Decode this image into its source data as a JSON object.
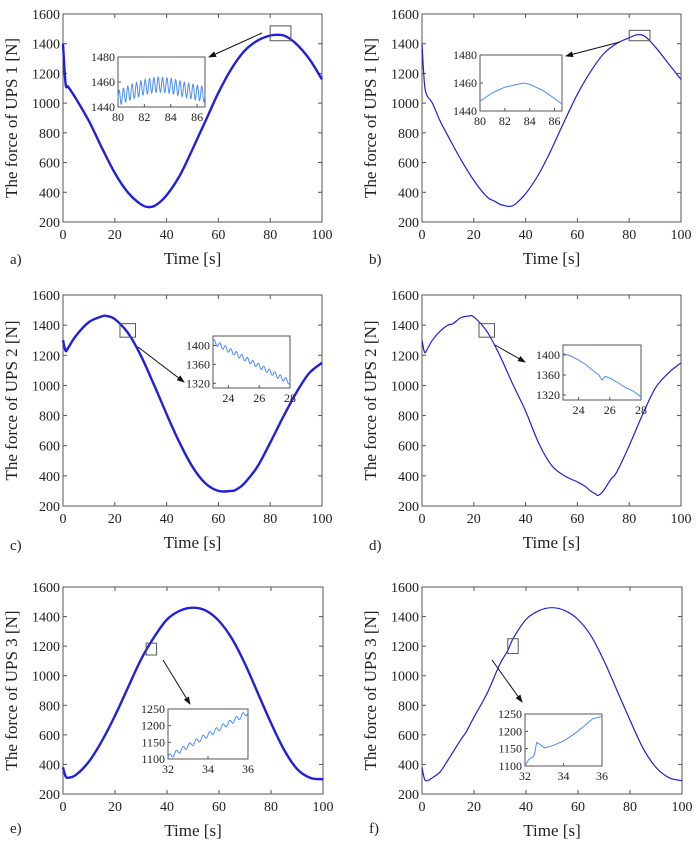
{
  "chart_data": [
    {
      "panel": "a)",
      "type": "line",
      "xlabel": "Time [s]",
      "ylabel": "The force of UPS 1 [N]",
      "xlim": [
        0,
        100
      ],
      "ylim": [
        200,
        1600
      ],
      "xticks": [
        0,
        20,
        40,
        60,
        80,
        100
      ],
      "yticks": [
        200,
        400,
        600,
        800,
        1000,
        1200,
        1400,
        1600
      ],
      "series": [
        {
          "name": "UPS 1 force",
          "color": "#1f1fe0",
          "x": [
            0,
            1,
            2,
            5,
            10,
            15,
            20,
            25,
            30,
            33,
            36,
            40,
            45,
            50,
            55,
            60,
            65,
            70,
            75,
            80,
            83,
            86,
            90,
            95,
            100
          ],
          "y": [
            1400,
            1130,
            1110,
            1030,
            880,
            700,
            530,
            400,
            320,
            300,
            315,
            380,
            510,
            690,
            880,
            1070,
            1230,
            1350,
            1420,
            1455,
            1460,
            1450,
            1400,
            1300,
            1160
          ]
        }
      ],
      "inset": {
        "xlim": [
          80,
          86.6
        ],
        "ylim": [
          1440,
          1480
        ],
        "xticks": [
          80,
          82,
          84,
          86
        ],
        "yticks": [
          1440,
          1460,
          1480
        ],
        "type": "oscillating",
        "baseline_x": [
          80,
          81,
          82,
          83,
          84,
          85,
          86.6
        ],
        "baseline_y": [
          1447,
          1452,
          1456,
          1458,
          1457,
          1454,
          1450
        ],
        "amplitude": 6,
        "cycles": 20,
        "color": "#4a8cff"
      },
      "zoom_box": {
        "x": [
          80,
          88
        ],
        "y": [
          1420,
          1520
        ]
      }
    },
    {
      "panel": "b)",
      "type": "line",
      "xlabel": "Time [s]",
      "ylabel": "The force of UPS 1 [N]",
      "xlim": [
        0,
        100
      ],
      "ylim": [
        200,
        1600
      ],
      "xticks": [
        0,
        20,
        40,
        60,
        80,
        100
      ],
      "yticks": [
        200,
        400,
        600,
        800,
        1000,
        1200,
        1400,
        1600
      ],
      "series": [
        {
          "name": "UPS 1 force",
          "color": "#1f1fe0",
          "x": [
            0,
            1,
            2,
            4,
            7,
            10,
            15,
            20,
            25,
            28,
            30,
            32,
            34,
            36,
            40,
            45,
            50,
            55,
            60,
            65,
            70,
            75,
            80,
            83,
            86,
            90,
            95,
            100
          ],
          "y": [
            1400,
            1120,
            1050,
            1000,
            880,
            780,
            620,
            480,
            370,
            340,
            320,
            310,
            305,
            320,
            390,
            520,
            690,
            880,
            1060,
            1210,
            1330,
            1400,
            1440,
            1460,
            1450,
            1380,
            1270,
            1160
          ]
        }
      ],
      "inset": {
        "xlim": [
          80,
          86.6
        ],
        "ylim": [
          1440,
          1480
        ],
        "xticks": [
          80,
          82,
          84,
          86
        ],
        "yticks": [
          1440,
          1460,
          1480
        ],
        "type": "smooth",
        "x": [
          80,
          80.5,
          81,
          81.5,
          82,
          82.5,
          83,
          83.5,
          84,
          84.5,
          85,
          85.5,
          86,
          86.6
        ],
        "y": [
          1447,
          1450,
          1453,
          1455,
          1457,
          1458,
          1459,
          1460,
          1459,
          1457,
          1455,
          1452,
          1449,
          1445
        ],
        "color": "#4a8cff"
      },
      "zoom_box": {
        "x": [
          80,
          88
        ],
        "y": [
          1420,
          1490
        ]
      }
    },
    {
      "panel": "c)",
      "type": "line",
      "xlabel": "Time [s]",
      "ylabel": "The force of UPS 2 [N]",
      "xlim": [
        0,
        100
      ],
      "ylim": [
        200,
        1600
      ],
      "xticks": [
        0,
        20,
        40,
        60,
        80,
        100
      ],
      "yticks": [
        200,
        400,
        600,
        800,
        1000,
        1200,
        1400,
        1600
      ],
      "series": [
        {
          "name": "UPS 2 force",
          "color": "#1f1fe0",
          "x": [
            0,
            1,
            2,
            5,
            10,
            15,
            17,
            20,
            25,
            30,
            35,
            40,
            45,
            50,
            55,
            60,
            65,
            67,
            70,
            75,
            80,
            85,
            90,
            95,
            100
          ],
          "y": [
            1300,
            1230,
            1250,
            1330,
            1420,
            1458,
            1460,
            1440,
            1350,
            1200,
            1010,
            810,
            620,
            460,
            350,
            300,
            300,
            310,
            350,
            460,
            620,
            790,
            950,
            1080,
            1150
          ]
        }
      ],
      "inset": {
        "xlim": [
          23,
          28
        ],
        "ylim": [
          1310,
          1420
        ],
        "xticks": [
          24,
          26,
          28
        ],
        "yticks": [
          1320,
          1360,
          1400
        ],
        "type": "oscillating",
        "baseline_x": [
          23,
          28
        ],
        "baseline_y": [
          1408,
          1322
        ],
        "amplitude": 5,
        "cycles": 14,
        "color": "#4a8cff"
      },
      "zoom_box": {
        "x": [
          22,
          28
        ],
        "y": [
          1320,
          1410
        ]
      }
    },
    {
      "panel": "d)",
      "type": "line",
      "xlabel": "Time [s]",
      "ylabel": "The force of UPS 2 [N]",
      "xlim": [
        0,
        100
      ],
      "ylim": [
        200,
        1600
      ],
      "xticks": [
        0,
        20,
        40,
        60,
        80,
        100
      ],
      "yticks": [
        200,
        400,
        600,
        800,
        1000,
        1200,
        1400,
        1600
      ],
      "series": [
        {
          "name": "UPS 2 force",
          "color": "#1f1fe0",
          "x": [
            0,
            1,
            2,
            4,
            7,
            10,
            12,
            15,
            18,
            20,
            25,
            30,
            35,
            40,
            45,
            50,
            55,
            60,
            63,
            65,
            67,
            68,
            70,
            73,
            75,
            80,
            85,
            90,
            95,
            100
          ],
          "y": [
            1300,
            1220,
            1240,
            1300,
            1360,
            1400,
            1410,
            1450,
            1460,
            1455,
            1360,
            1200,
            1010,
            830,
            620,
            470,
            400,
            360,
            330,
            300,
            280,
            270,
            300,
            380,
            420,
            600,
            800,
            980,
            1080,
            1150
          ]
        }
      ],
      "inset": {
        "xlim": [
          23,
          28
        ],
        "ylim": [
          1310,
          1420
        ],
        "xticks": [
          24,
          26,
          28
        ],
        "yticks": [
          1320,
          1360,
          1400
        ],
        "type": "smooth",
        "x": [
          23,
          23.5,
          24,
          24.5,
          25,
          25.3,
          25.5,
          25.7,
          26,
          26.5,
          27,
          27.5,
          28
        ],
        "y": [
          1403,
          1398,
          1390,
          1380,
          1367,
          1360,
          1350,
          1357,
          1354,
          1345,
          1335,
          1328,
          1316
        ],
        "color": "#4a8cff"
      },
      "zoom_box": {
        "x": [
          22,
          28
        ],
        "y": [
          1320,
          1410
        ]
      }
    },
    {
      "panel": "e)",
      "type": "line",
      "xlabel": "Time [s]",
      "ylabel": "The force of UPS 3 [N]",
      "xlim": [
        0,
        100
      ],
      "ylim": [
        200,
        1600
      ],
      "xticks": [
        0,
        20,
        40,
        60,
        80,
        100
      ],
      "yticks": [
        200,
        400,
        600,
        800,
        1000,
        1200,
        1400,
        1600
      ],
      "series": [
        {
          "name": "UPS 3 force",
          "color": "#1f1fe0",
          "x": [
            0,
            1,
            2,
            5,
            10,
            15,
            20,
            25,
            30,
            35,
            40,
            45,
            50,
            55,
            60,
            65,
            70,
            75,
            80,
            85,
            90,
            95,
            100
          ],
          "y": [
            380,
            320,
            310,
            330,
            420,
            560,
            730,
            920,
            1110,
            1260,
            1380,
            1440,
            1460,
            1440,
            1370,
            1250,
            1080,
            880,
            680,
            500,
            370,
            310,
            300
          ]
        }
      ],
      "inset": {
        "xlim": [
          32,
          36
        ],
        "ylim": [
          1100,
          1250
        ],
        "xticks": [
          32,
          34,
          36
        ],
        "yticks": [
          1100,
          1150,
          1200,
          1250
        ],
        "type": "oscillating",
        "baseline_x": [
          32,
          36
        ],
        "baseline_y": [
          1105,
          1240
        ],
        "amplitude": 7,
        "cycles": 12,
        "color": "#4a8cff"
      },
      "zoom_box": {
        "x": [
          32,
          36
        ],
        "y": [
          1140,
          1220
        ]
      }
    },
    {
      "panel": "f)",
      "type": "line",
      "xlabel": "Time [s]",
      "ylabel": "The force of UPS 3 [N]",
      "xlim": [
        0,
        100
      ],
      "ylim": [
        200,
        1600
      ],
      "xticks": [
        0,
        20,
        40,
        60,
        80,
        100
      ],
      "yticks": [
        200,
        400,
        600,
        800,
        1000,
        1200,
        1400,
        1600
      ],
      "series": [
        {
          "name": "UPS 3 force",
          "color": "#1f1fe0",
          "x": [
            0,
            1,
            2,
            4,
            7,
            10,
            15,
            17,
            20,
            25,
            30,
            33,
            35,
            40,
            45,
            50,
            55,
            60,
            65,
            70,
            75,
            80,
            85,
            90,
            95,
            100
          ],
          "y": [
            380,
            300,
            290,
            310,
            350,
            430,
            570,
            620,
            720,
            880,
            1080,
            1170,
            1250,
            1380,
            1440,
            1460,
            1440,
            1380,
            1270,
            1100,
            900,
            700,
            510,
            380,
            310,
            290
          ]
        }
      ],
      "inset": {
        "xlim": [
          32,
          36
        ],
        "ylim": [
          1100,
          1250
        ],
        "xticks": [
          32,
          34,
          36
        ],
        "yticks": [
          1100,
          1150,
          1200,
          1250
        ],
        "type": "smooth",
        "x": [
          32,
          32.2,
          32.4,
          32.5,
          32.6,
          32.8,
          33,
          33.5,
          34,
          34.5,
          35,
          35.5,
          36
        ],
        "y": [
          1100,
          1120,
          1125,
          1135,
          1168,
          1162,
          1152,
          1160,
          1172,
          1190,
          1212,
          1236,
          1243
        ],
        "color": "#4a8cff"
      },
      "zoom_box": {
        "x": [
          33,
          37
        ],
        "y": [
          1150,
          1250
        ]
      }
    }
  ]
}
